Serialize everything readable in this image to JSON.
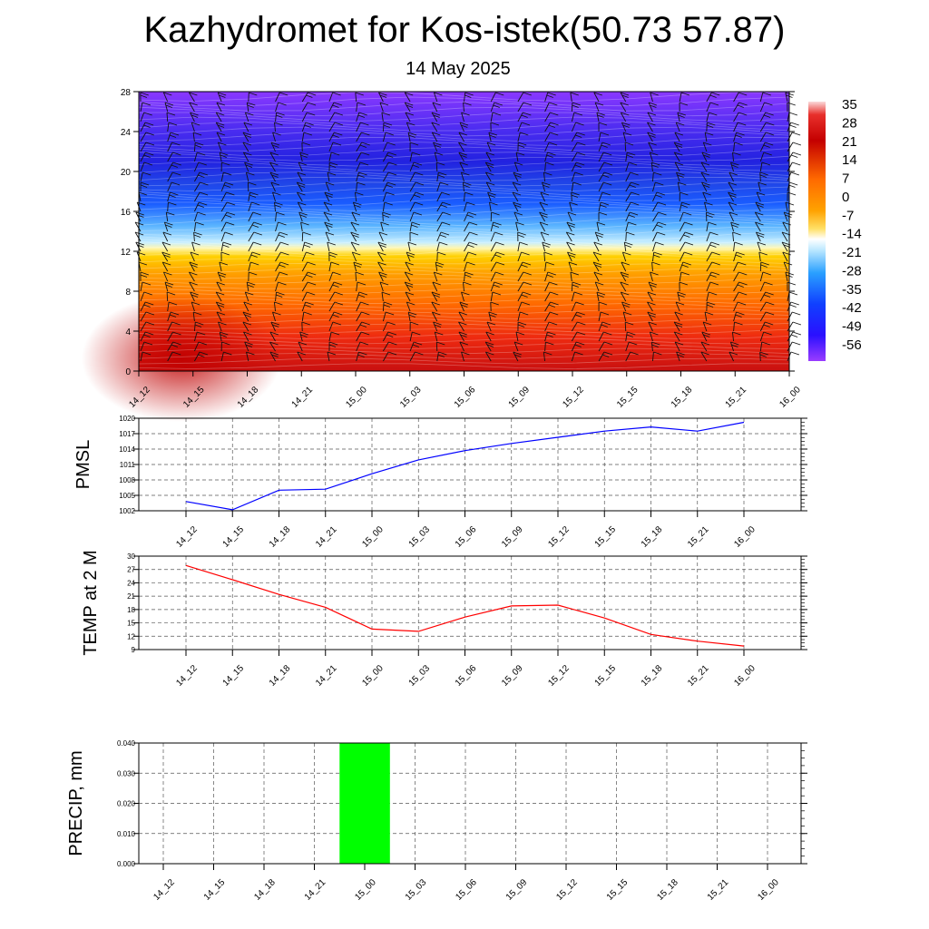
{
  "title": "Kazhydromet for Kos-istek(50.73 57.87)",
  "subtitle": "14 May 2025",
  "time_labels": [
    "14_12",
    "14_15",
    "14_18",
    "14_21",
    "15_00",
    "15_03",
    "15_06",
    "15_09",
    "15_12",
    "15_15",
    "15_18",
    "15_21",
    "16_00"
  ],
  "chart_data": [
    {
      "type": "heatmap",
      "title": "",
      "xlabel": "",
      "ylabel": "",
      "categories": [
        "14_12",
        "14_15",
        "14_18",
        "14_21",
        "15_00",
        "15_03",
        "15_06",
        "15_09",
        "15_12",
        "15_15",
        "15_18",
        "15_21",
        "16_00"
      ],
      "y_ticks": [
        "0",
        "4",
        "8",
        "12",
        "16",
        "20",
        "24",
        "28"
      ],
      "ylim": [
        0,
        28
      ],
      "colorbar_labels": [
        "35",
        "28",
        "21",
        "14",
        "7",
        "0",
        "-7",
        "-14",
        "-21",
        "-28",
        "-35",
        "-42",
        "-49",
        "-56"
      ],
      "colorbar_range": [
        -63,
        42
      ],
      "wind_barbs": true,
      "legend": "right",
      "temperature_profile": [
        {
          "level": 0,
          "values": [
            30,
            29,
            27,
            25,
            22,
            21,
            22,
            23,
            23,
            22,
            21,
            20,
            20
          ]
        },
        {
          "level": 4,
          "values": [
            24,
            24,
            21,
            19,
            17,
            17,
            18,
            19,
            19,
            18,
            17,
            17,
            17
          ]
        },
        {
          "level": 8,
          "values": [
            10,
            10,
            10,
            10,
            9,
            9,
            9,
            9,
            9,
            9,
            9,
            9,
            9
          ]
        },
        {
          "level": 12,
          "values": [
            -5,
            -5,
            -7,
            -8,
            -8,
            -8,
            -8,
            -8,
            -8,
            -8,
            -8,
            -8,
            -8
          ]
        },
        {
          "level": 14,
          "values": [
            -15,
            -16,
            -17,
            -18,
            -18,
            -18,
            -18,
            -18,
            -18,
            -18,
            -18,
            -18,
            -18
          ]
        },
        {
          "level": 16,
          "values": [
            -30,
            -30,
            -31,
            -31,
            -31,
            -31,
            -31,
            -31,
            -31,
            -31,
            -31,
            -31,
            -31
          ]
        },
        {
          "level": 18,
          "values": [
            -42,
            -43,
            -44,
            -44,
            -44,
            -43,
            -43,
            -43,
            -44,
            -44,
            -45,
            -46,
            -47
          ]
        },
        {
          "level": 20,
          "values": [
            -50,
            -52,
            -54,
            -56,
            -54,
            -52,
            -52,
            -52,
            -52,
            -52,
            -53,
            -54,
            -55
          ]
        },
        {
          "level": 22,
          "values": [
            -55,
            -55,
            -56,
            -57,
            -57,
            -57,
            -57,
            -57,
            -57,
            -57,
            -57,
            -57,
            -57
          ]
        },
        {
          "level": 24,
          "values": [
            -58,
            -58,
            -58,
            -58,
            -58,
            -58,
            -58,
            -58,
            -58,
            -58,
            -58,
            -58,
            -58
          ]
        },
        {
          "level": 26,
          "values": [
            -62,
            -62,
            -62,
            -61,
            -61,
            -61,
            -61,
            -61,
            -61,
            -61,
            -61,
            -61,
            -61
          ]
        },
        {
          "level": 28,
          "values": [
            -63,
            -63,
            -62,
            -62,
            -62,
            -62,
            -62,
            -62,
            -62,
            -62,
            -62,
            -62,
            -62
          ]
        }
      ]
    },
    {
      "type": "line",
      "title": "",
      "xlabel": "",
      "ylabel": "PMSL",
      "categories": [
        "14_12",
        "14_15",
        "14_18",
        "14_21",
        "15_00",
        "15_03",
        "15_06",
        "15_09",
        "15_12",
        "15_15",
        "15_18",
        "15_21",
        "16_00"
      ],
      "y_ticks": [
        "1002",
        "1005",
        "1008",
        "1011",
        "1014",
        "1017",
        "1020"
      ],
      "ylim": [
        1002,
        1020
      ],
      "grid": true,
      "color": "#0000ff",
      "values": [
        1003.8,
        1002.2,
        1006.0,
        1006.2,
        1009.2,
        1011.9,
        1013.7,
        1015.1,
        1016.3,
        1017.5,
        1018.3,
        1017.5,
        1019.2
      ]
    },
    {
      "type": "line",
      "title": "",
      "xlabel": "",
      "ylabel": "TEMP at 2 M",
      "categories": [
        "14_12",
        "14_15",
        "14_18",
        "14_21",
        "15_00",
        "15_03",
        "15_06",
        "15_09",
        "15_12",
        "15_15",
        "15_18",
        "15_21",
        "16_00"
      ],
      "y_ticks": [
        "9",
        "12",
        "15",
        "18",
        "21",
        "24",
        "27",
        "30"
      ],
      "ylim": [
        9,
        30
      ],
      "grid": true,
      "color": "#ff0000",
      "values": [
        27.9,
        24.7,
        21.4,
        18.5,
        13.6,
        13.1,
        16.3,
        18.8,
        19.0,
        16.1,
        12.4,
        10.9,
        9.8
      ]
    },
    {
      "type": "bar",
      "title": "",
      "xlabel": "",
      "ylabel": "PRECIP, mm",
      "categories": [
        "14_12",
        "14_15",
        "14_18",
        "14_21",
        "15_00",
        "15_03",
        "15_06",
        "15_09",
        "15_12",
        "15_15",
        "15_18",
        "15_21",
        "16_00"
      ],
      "y_ticks": [
        "0.000",
        "0.010",
        "0.020",
        "0.030",
        "0.040"
      ],
      "ylim": [
        0,
        0.04
      ],
      "grid": true,
      "color": "#00ff00",
      "values": [
        0,
        0,
        0,
        0,
        0.04,
        0,
        0,
        0,
        0,
        0,
        0,
        0,
        0
      ]
    }
  ]
}
